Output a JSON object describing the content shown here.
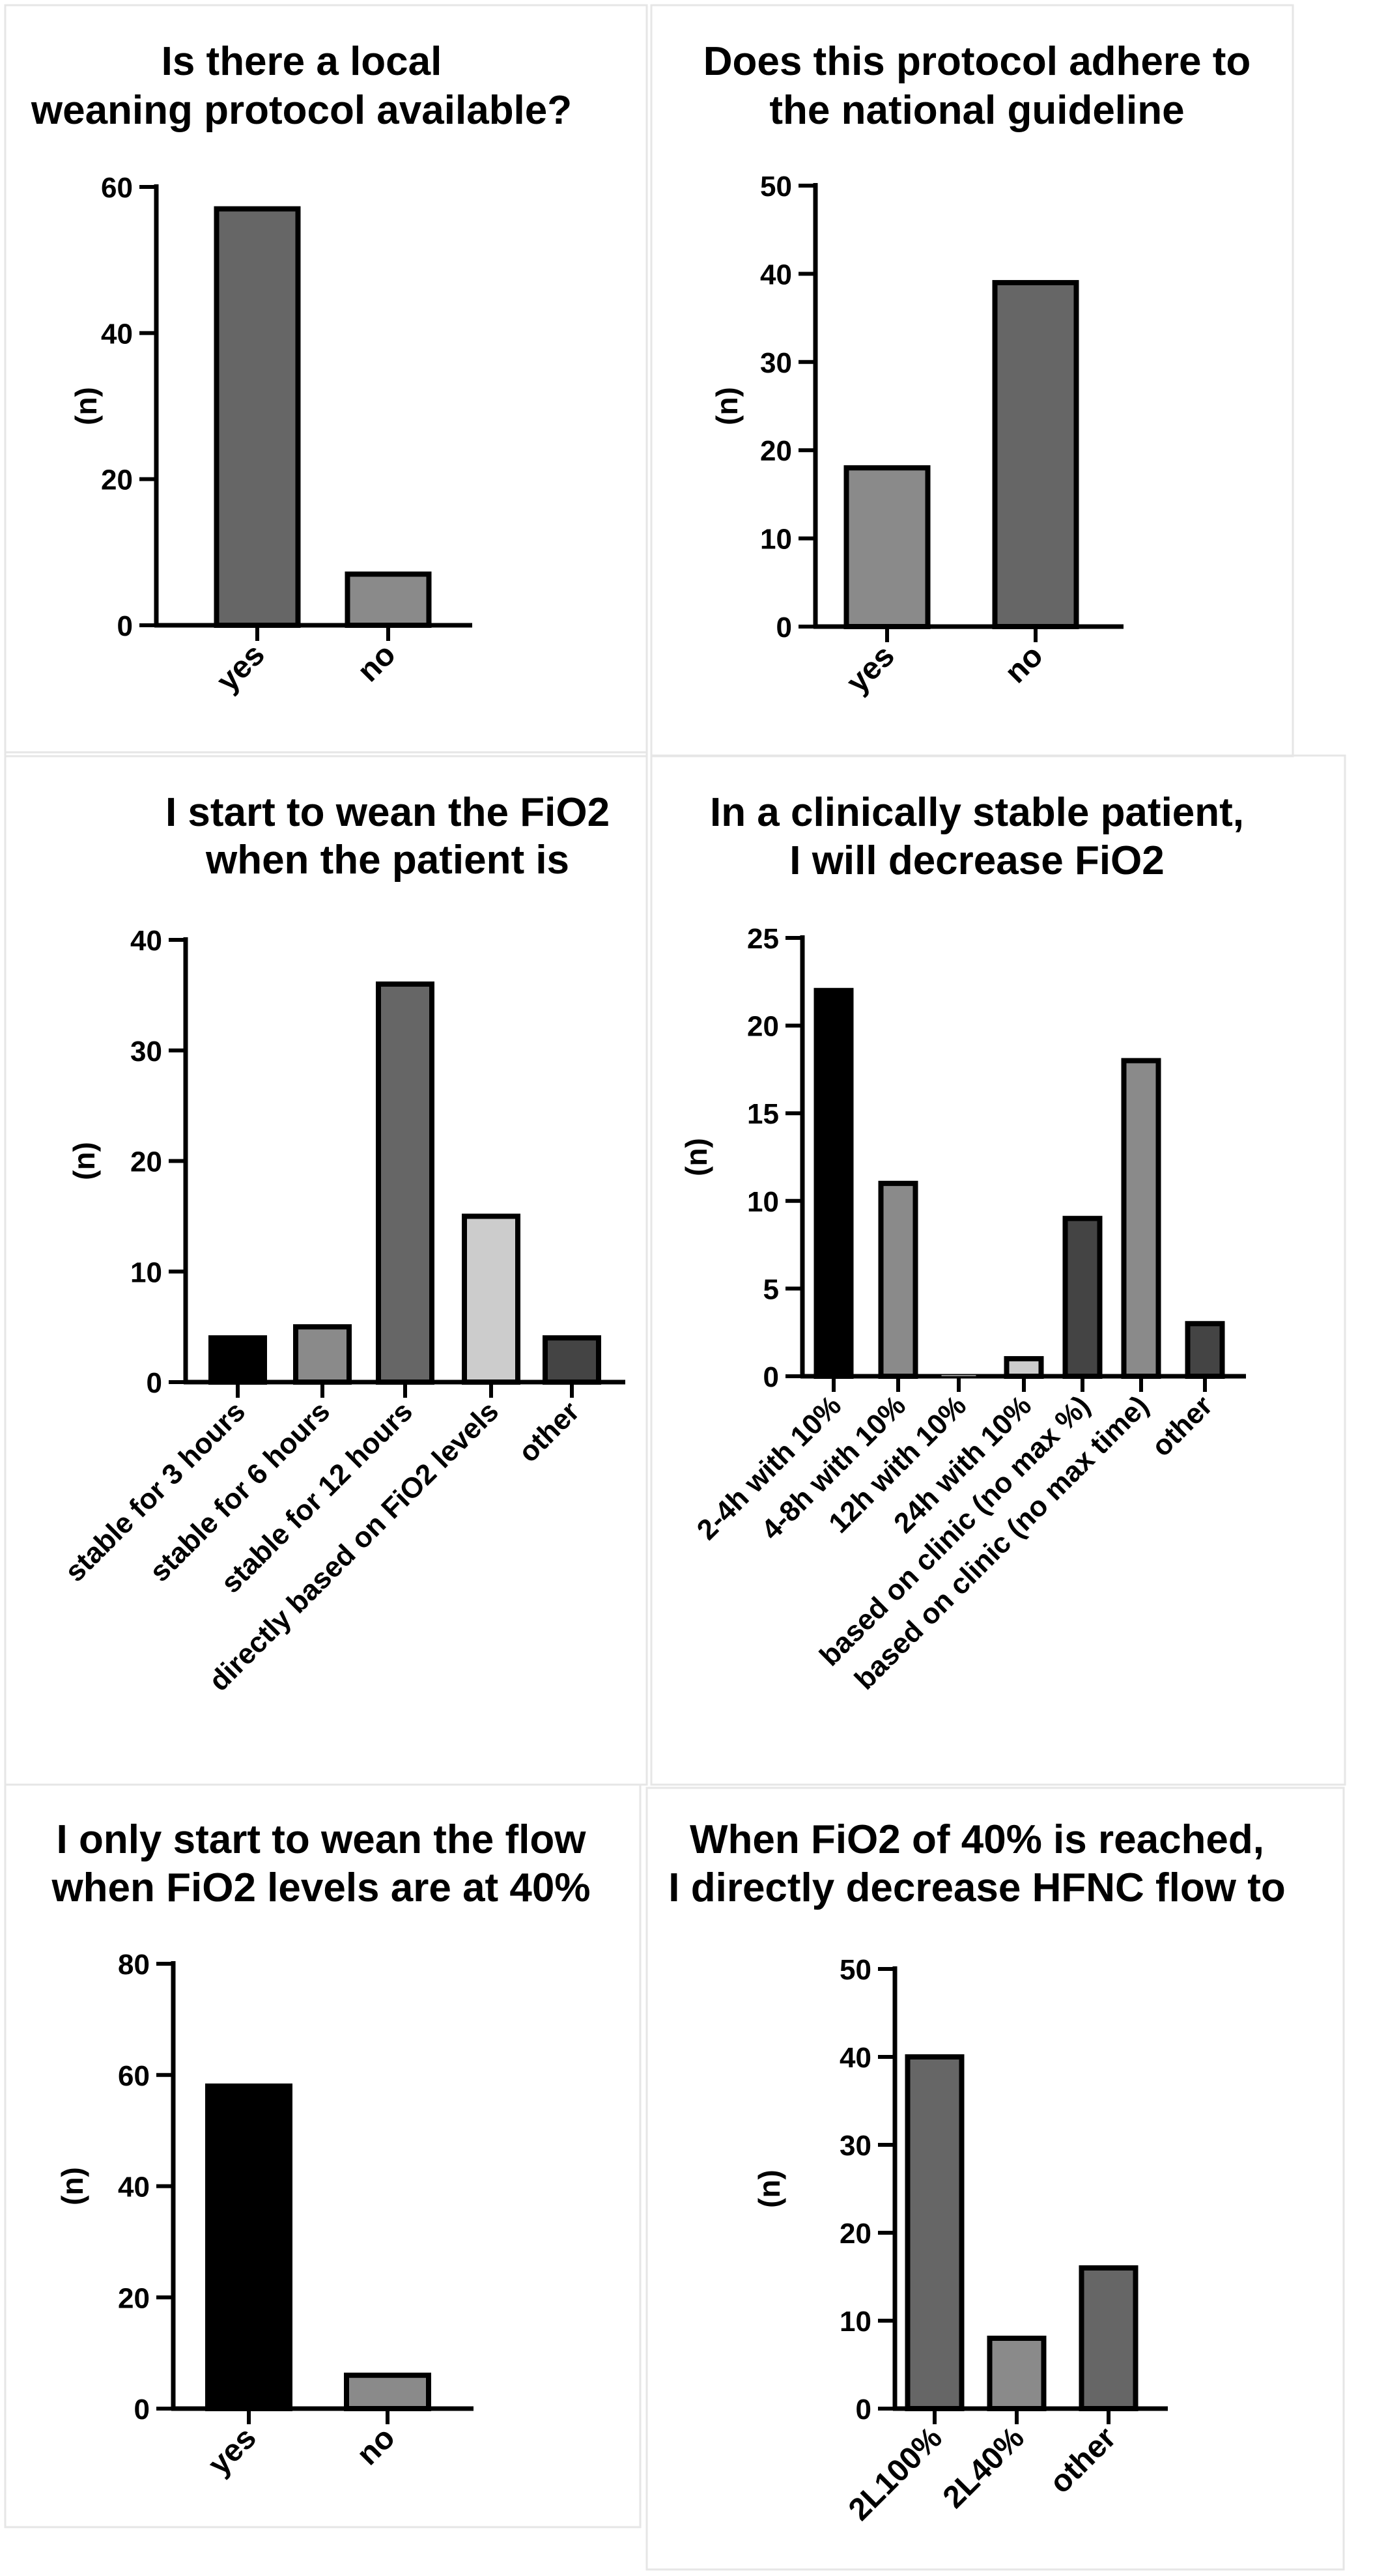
{
  "colors": {
    "black": "#000000",
    "dark_gray": "#666666",
    "mid_gray": "#8a8a8a",
    "light_gray": "#cccccc",
    "darker_gray": "#444444",
    "panel_border": "#e6e6e6"
  },
  "chart_data": [
    {
      "type": "bar",
      "title_lines": [
        "Is there a local",
        "weaning protocol available?"
      ],
      "ylabel": "(n)",
      "categories": [
        "yes",
        "no"
      ],
      "values": [
        57,
        7
      ],
      "bar_colors": [
        "#666666",
        "#8a8a8a"
      ],
      "yticks": [
        0,
        20,
        40,
        60
      ],
      "ylim": [
        0,
        60
      ]
    },
    {
      "type": "bar",
      "title_lines": [
        "Does this protocol adhere to",
        "the national guideline"
      ],
      "ylabel": "(n)",
      "categories": [
        "yes",
        "no"
      ],
      "values": [
        18,
        39
      ],
      "bar_colors": [
        "#8a8a8a",
        "#666666"
      ],
      "yticks": [
        0,
        10,
        20,
        30,
        40,
        50
      ],
      "ylim": [
        0,
        50
      ]
    },
    {
      "type": "bar",
      "title_lines": [
        "I start to wean the FiO2",
        "when the patient is"
      ],
      "ylabel": "(n)",
      "categories": [
        "stable for 3 hours",
        "stable for 6 hours",
        "stable for 12 hours",
        "directly based on FiO2 levels",
        "other"
      ],
      "values": [
        4,
        5,
        36,
        15,
        4
      ],
      "bar_colors": [
        "#000000",
        "#8a8a8a",
        "#666666",
        "#cccccc",
        "#444444"
      ],
      "yticks": [
        0,
        10,
        20,
        30,
        40
      ],
      "ylim": [
        0,
        40
      ]
    },
    {
      "type": "bar",
      "title_lines": [
        "In a clinically stable patient,",
        "I will decrease FiO2"
      ],
      "ylabel": "(n)",
      "categories": [
        "2-4h with 10%",
        "4-8h with 10%",
        "12h with 10%",
        "24h with 10%",
        "based on clinic (no max %)",
        "based on clinic (no max time)",
        "other"
      ],
      "values": [
        22,
        11,
        0,
        1,
        9,
        18,
        3
      ],
      "bar_colors": [
        "#000000",
        "#8a8a8a",
        "#8a8a8a",
        "#cccccc",
        "#444444",
        "#8a8a8a",
        "#444444"
      ],
      "yticks": [
        0,
        5,
        10,
        15,
        20,
        25
      ],
      "ylim": [
        0,
        25
      ]
    },
    {
      "type": "bar",
      "title_lines": [
        "I only start to wean the flow",
        "when FiO2 levels are at 40%"
      ],
      "ylabel": "(n)",
      "categories": [
        "yes",
        "no"
      ],
      "values": [
        58,
        6
      ],
      "bar_colors": [
        "#000000",
        "#8a8a8a"
      ],
      "yticks": [
        0,
        20,
        40,
        60,
        80
      ],
      "ylim": [
        0,
        80
      ]
    },
    {
      "type": "bar",
      "title_lines": [
        "When FiO2 of 40% is reached,",
        "I directly decrease  HFNC flow to"
      ],
      "ylabel": "(n)",
      "categories": [
        "2L100%",
        "2L40%",
        "other"
      ],
      "values": [
        40,
        8,
        16
      ],
      "bar_colors": [
        "#666666",
        "#8a8a8a",
        "#666666"
      ],
      "yticks": [
        0,
        10,
        20,
        30,
        40,
        50
      ],
      "ylim": [
        0,
        50
      ]
    }
  ]
}
